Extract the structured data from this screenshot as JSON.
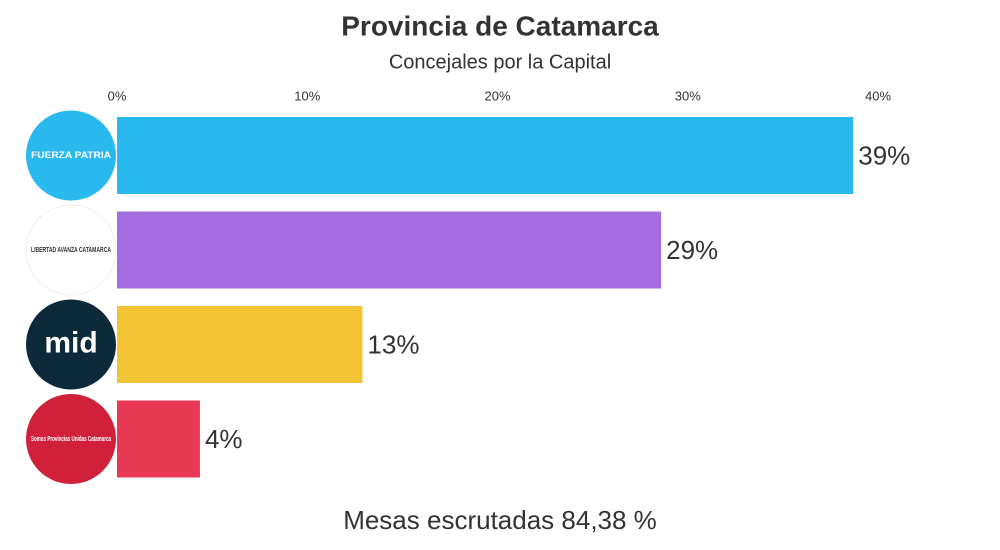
{
  "chart_data": {
    "type": "bar",
    "orientation": "horizontal",
    "title": "Provincia de Catamarca",
    "subtitle": "Concejales por la Capital",
    "categories": [
      "FUERZA PATRIA",
      "LIBERTAD AVANZA CATAMARCA",
      "mid",
      "Somos Provincias Unidas Catamarca"
    ],
    "values": [
      38.7,
      28.6,
      12.9,
      4.36
    ],
    "value_labels": [
      "39%",
      "29%",
      "13%",
      "4%"
    ],
    "colors": [
      "#29b9ee",
      "#a46ee0",
      "#f2c335",
      "#e93a55"
    ],
    "xlim": [
      0,
      40
    ],
    "xticks": [
      {
        "value": 0,
        "label": "0%"
      },
      {
        "value": 10,
        "label": "10%"
      },
      {
        "value": 20,
        "label": "20%"
      },
      {
        "value": 30,
        "label": "30%"
      },
      {
        "value": 40,
        "label": "40%"
      }
    ],
    "grid": false,
    "annotation": "Mesas escrutadas 84,38 %"
  }
}
